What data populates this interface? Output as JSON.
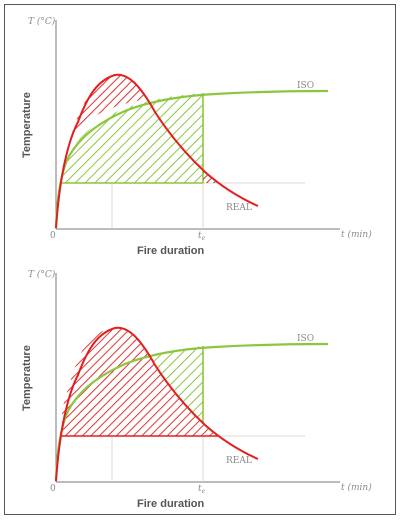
{
  "colors": {
    "iso": "#8cc63f",
    "real": "#e02020",
    "axis": "#7a7a7a",
    "guide": "#d8d8d8",
    "border": "#555555"
  },
  "chart_data": [
    {
      "type": "line",
      "ylabel": "Temperature",
      "y_axis_label": "T (°C)",
      "xlabel": "Fire duration",
      "x_axis_label": "t (min)",
      "x_origin_label": "0",
      "x_marker_label": "te",
      "grid": false,
      "hatched_area": "ISO",
      "series": [
        {
          "name": "ISO",
          "color": "#8cc63f"
        },
        {
          "name": "REAL",
          "color": "#e02020"
        }
      ]
    },
    {
      "type": "line",
      "ylabel": "Temperature",
      "y_axis_label": "T (°C)",
      "xlabel": "Fire duration",
      "x_axis_label": "t (min)",
      "x_origin_label": "0",
      "x_marker_label": "te",
      "grid": false,
      "hatched_area": "REAL",
      "series": [
        {
          "name": "ISO",
          "color": "#8cc63f"
        },
        {
          "name": "REAL",
          "color": "#e02020"
        }
      ]
    }
  ]
}
